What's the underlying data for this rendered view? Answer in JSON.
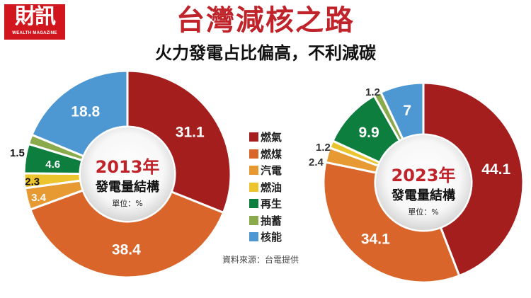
{
  "logo": {
    "cn": "財訊",
    "en": "WEALTH MAGAZINE"
  },
  "header": {
    "title": "台灣減核之路",
    "subtitle": "火力發電占比偏高，不利減碳"
  },
  "legend": {
    "items": [
      {
        "label": "燃氣",
        "color": "#a51e1e"
      },
      {
        "label": "燃煤",
        "color": "#d9652a"
      },
      {
        "label": "汽電",
        "color": "#e89a32"
      },
      {
        "label": "燃油",
        "color": "#ecc52e"
      },
      {
        "label": "再生",
        "color": "#0d7e3d"
      },
      {
        "label": "抽蓄",
        "color": "#8aaa4c"
      },
      {
        "label": "核能",
        "color": "#4d97d3"
      }
    ]
  },
  "source": "資料來源：台電提供",
  "charts": [
    {
      "year_label": "2013年",
      "caption": "發電量結構",
      "unit": "單位：%"
    },
    {
      "year_label": "2023年",
      "caption": "發電量結構",
      "unit": "單位：%"
    }
  ],
  "chart_data": [
    {
      "type": "pie",
      "title": "2013年 發電量結構",
      "unit": "%",
      "categories": [
        "燃氣",
        "燃煤",
        "汽電",
        "燃油",
        "再生",
        "抽蓄",
        "核能"
      ],
      "values": [
        31.1,
        38.4,
        3.4,
        2.3,
        4.6,
        1.5,
        18.8
      ],
      "colors": [
        "#a51e1e",
        "#d9652a",
        "#e89a32",
        "#ecc52e",
        "#0d7e3d",
        "#8aaa4c",
        "#4d97d3"
      ],
      "donut": true
    },
    {
      "type": "pie",
      "title": "2023年 發電量結構",
      "unit": "%",
      "categories": [
        "燃氣",
        "燃煤",
        "汽電",
        "燃油",
        "再生",
        "抽蓄",
        "核能"
      ],
      "values": [
        44.1,
        34.1,
        2.4,
        1.2,
        9.9,
        1.2,
        7
      ],
      "colors": [
        "#a51e1e",
        "#d9652a",
        "#e89a32",
        "#ecc52e",
        "#0d7e3d",
        "#8aaa4c",
        "#4d97d3"
      ],
      "donut": true
    }
  ]
}
